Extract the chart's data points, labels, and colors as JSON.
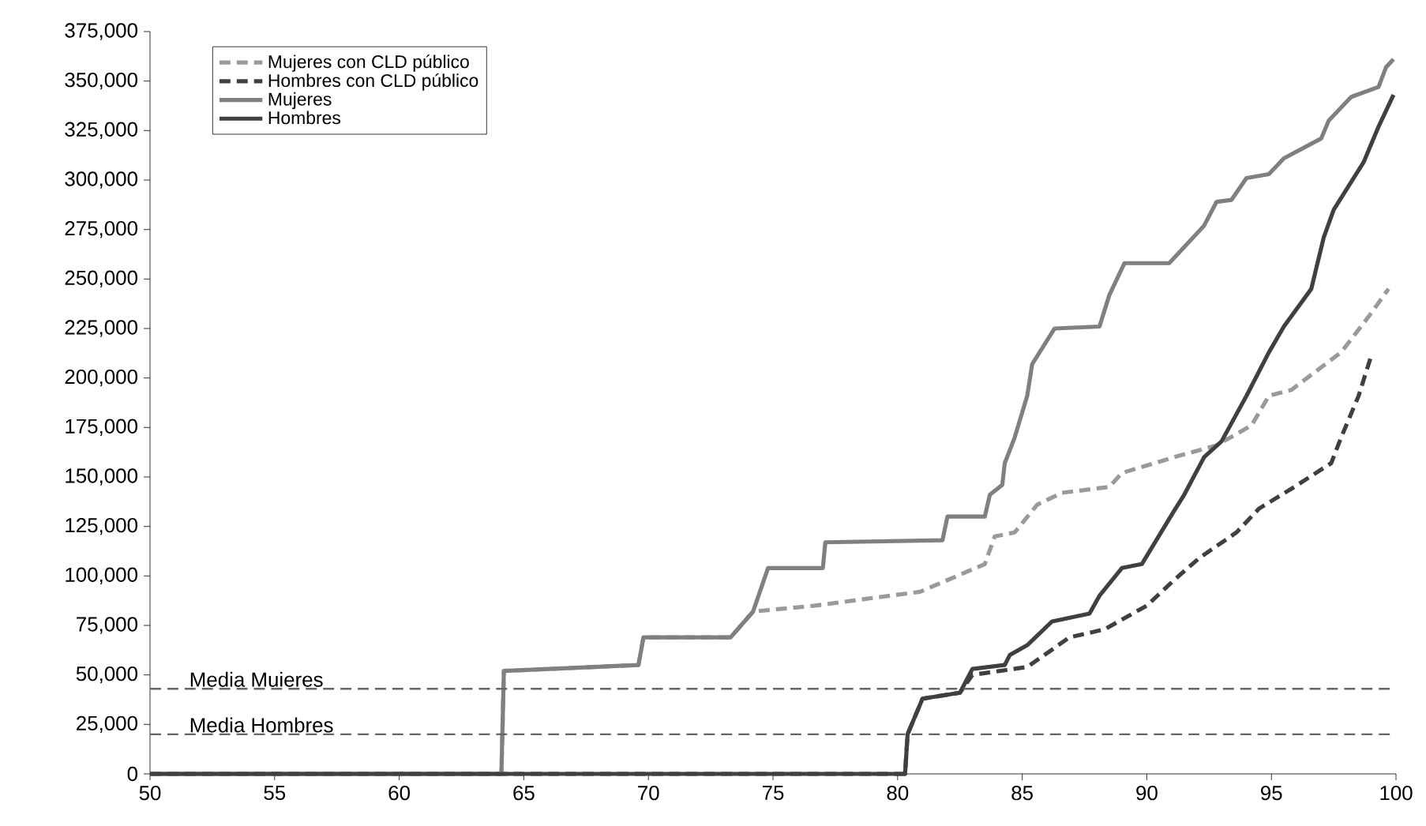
{
  "chart_data": {
    "type": "line",
    "xlim": [
      50,
      100
    ],
    "xticks": [
      50,
      55,
      60,
      65,
      70,
      75,
      80,
      85,
      90,
      95,
      100
    ],
    "ylim": [
      0,
      375000
    ],
    "yticks": [
      {
        "value": 0,
        "label": "0"
      },
      {
        "value": 25000,
        "label": "25,000"
      },
      {
        "value": 50000,
        "label": "50,000"
      },
      {
        "value": 75000,
        "label": "75,000"
      },
      {
        "value": 100000,
        "label": "100,000"
      },
      {
        "value": 125000,
        "label": "125,000"
      },
      {
        "value": 150000,
        "label": "150,000"
      },
      {
        "value": 175000,
        "label": "175,000"
      },
      {
        "value": 200000,
        "label": "200,000"
      },
      {
        "value": 225000,
        "label": "225,000"
      },
      {
        "value": 250000,
        "label": "250,000"
      },
      {
        "value": 275000,
        "label": "275,000"
      },
      {
        "value": 300000,
        "label": "300,000"
      },
      {
        "value": 325000,
        "label": "325,000"
      },
      {
        "value": 350000,
        "label": "350,000"
      },
      {
        "value": 375000,
        "label": "375,000"
      }
    ],
    "grid": false,
    "legend": "top left",
    "marker": "none",
    "series": [
      {
        "name": "Mujeres con CLD público",
        "color": "#9a9a9a",
        "line_style": "dashed",
        "x": [
          50,
          64.1,
          64.2,
          69.6,
          69.8,
          73.3,
          74.2,
          76.7,
          80.9,
          83.5,
          83.9,
          84.7,
          85.6,
          86.6,
          88.5,
          89.0,
          91.1,
          92.8,
          94.2,
          94.9,
          95.8,
          97.8,
          98.9,
          99.7
        ],
        "values": [
          0,
          0,
          52000,
          55000,
          69000,
          69000,
          82000,
          85000,
          92000,
          106000,
          120000,
          122000,
          136000,
          142000,
          145000,
          152000,
          160000,
          166000,
          176000,
          191000,
          194000,
          213000,
          231000,
          245000
        ]
      },
      {
        "name": "Hombres con CLD público",
        "color": "#404040",
        "line_style": "dashed",
        "x": [
          50,
          80.3,
          80.4,
          81.0,
          82.5,
          83.0,
          85.2,
          86.9,
          88.3,
          90.0,
          91.1,
          92.1,
          93.6,
          94.5,
          95.8,
          97.4,
          97.8,
          98.5,
          99.0
        ],
        "values": [
          0,
          0,
          20000,
          38000,
          41000,
          50000,
          54000,
          69000,
          73000,
          85000,
          98000,
          109000,
          122000,
          134000,
          144000,
          157000,
          170000,
          191000,
          211000
        ]
      },
      {
        "name": "Mujeres",
        "color": "#808080",
        "line_style": "solid",
        "x": [
          50,
          64.1,
          64.2,
          69.6,
          69.8,
          73.3,
          74.2,
          74.8,
          77.0,
          77.1,
          81.8,
          82.0,
          83.5,
          83.7,
          84.2,
          84.3,
          84.7,
          85.2,
          85.4,
          86.3,
          88.1,
          88.5,
          89.1,
          90.9,
          92.3,
          92.8,
          93.4,
          94.0,
          94.9,
          95.5,
          97.0,
          97.3,
          98.2,
          99.3,
          99.6,
          99.9
        ],
        "values": [
          0,
          0,
          52000,
          55000,
          69000,
          69000,
          82000,
          104000,
          104000,
          117000,
          118000,
          130000,
          130000,
          141000,
          146000,
          157000,
          170000,
          191000,
          207000,
          225000,
          226000,
          242000,
          258000,
          258000,
          277000,
          289000,
          290000,
          301000,
          303000,
          311000,
          321000,
          330000,
          342000,
          347000,
          357000,
          361000
        ]
      },
      {
        "name": "Hombres",
        "color": "#404040",
        "line_style": "solid",
        "x": [
          50,
          80.3,
          80.4,
          81.0,
          82.5,
          83.0,
          84.3,
          84.5,
          85.2,
          86.2,
          87.7,
          88.1,
          89.0,
          89.8,
          91.1,
          91.5,
          92.3,
          93.0,
          94.0,
          94.9,
          95.5,
          96.6,
          97.1,
          97.5,
          98.7,
          99.3,
          99.9
        ],
        "values": [
          0,
          0,
          20000,
          38000,
          41000,
          53000,
          55000,
          60000,
          65000,
          77000,
          81000,
          90000,
          104000,
          106000,
          133000,
          141000,
          160000,
          168000,
          191000,
          213000,
          226000,
          245000,
          271000,
          285000,
          309000,
          327000,
          343000
        ]
      }
    ],
    "ref_lines": [
      {
        "axis": "y",
        "value": 43000,
        "label": "Media Muieres",
        "color": "#666666",
        "line_style": "dashed"
      },
      {
        "axis": "y",
        "value": 20000,
        "label": "Media Hombres",
        "color": "#666666",
        "line_style": "dashed"
      }
    ]
  }
}
